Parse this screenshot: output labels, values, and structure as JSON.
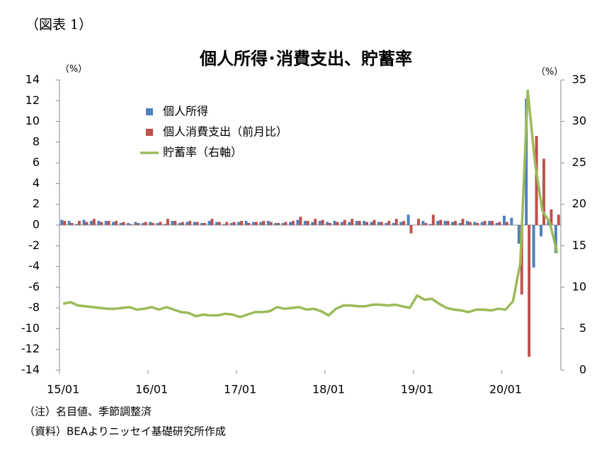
{
  "figure_label": "（図表 1）",
  "chart_data": {
    "type": "bar_line",
    "title": "個人所得･消費支出、貯蓄率",
    "y_unit": "（%）",
    "y2_unit": "（%）",
    "categories": [
      "15/01",
      null,
      null,
      null,
      null,
      null,
      null,
      null,
      null,
      null,
      null,
      null,
      "16/01",
      null,
      null,
      null,
      null,
      null,
      null,
      null,
      null,
      null,
      null,
      null,
      "17/01",
      null,
      null,
      null,
      null,
      null,
      null,
      null,
      null,
      null,
      null,
      null,
      "18/01",
      null,
      null,
      null,
      null,
      null,
      null,
      null,
      null,
      null,
      null,
      null,
      "19/01",
      null,
      null,
      null,
      null,
      null,
      null,
      null,
      null,
      null,
      null,
      null,
      "20/01",
      null,
      null,
      null,
      null,
      null,
      null,
      null
    ],
    "ylim": [
      -14,
      14
    ],
    "yticks": [
      -14,
      -12,
      -10,
      -8,
      -6,
      -4,
      -2,
      0,
      2,
      4,
      6,
      8,
      10,
      12,
      14
    ],
    "y2lim": [
      0,
      35
    ],
    "y2ticks": [
      0,
      5,
      10,
      15,
      20,
      25,
      30,
      35
    ],
    "grid": false,
    "series": [
      {
        "name": "個人所得",
        "type": "bar",
        "color": "#4f81bd",
        "values": [
          0.5,
          0.4,
          0.1,
          0.5,
          0.4,
          0.4,
          0.4,
          0.3,
          0.2,
          0.2,
          0.3,
          0.2,
          0.3,
          0.2,
          0.1,
          0.4,
          0.2,
          0.3,
          0.3,
          0.2,
          0.4,
          0.3,
          0.1,
          0.2,
          0.3,
          0.4,
          0.3,
          0.3,
          0.4,
          0.2,
          0.2,
          0.3,
          0.5,
          0.4,
          0.3,
          0.4,
          0.3,
          0.4,
          0.3,
          0.3,
          0.4,
          0.4,
          0.3,
          0.3,
          0.2,
          0.2,
          0.3,
          1.0,
          0.0,
          0.4,
          0.1,
          0.4,
          0.4,
          0.3,
          0.2,
          0.4,
          0.3,
          0.3,
          0.4,
          0.2,
          0.9,
          0.7,
          -1.8,
          12.2,
          -4.1,
          -1.1,
          0.5,
          -2.7
        ]
      },
      {
        "name": "個人消費支出（前月比）",
        "type": "bar",
        "color": "#c0504d",
        "values": [
          0.4,
          0.2,
          0.4,
          0.3,
          0.6,
          0.3,
          0.4,
          0.4,
          0.3,
          0.1,
          0.2,
          0.3,
          0.2,
          0.3,
          0.6,
          0.4,
          0.3,
          0.4,
          0.3,
          0.2,
          0.6,
          0.3,
          0.3,
          0.3,
          0.4,
          0.2,
          0.3,
          0.4,
          0.3,
          0.2,
          0.3,
          0.4,
          0.8,
          0.4,
          0.6,
          0.5,
          0.2,
          0.3,
          0.5,
          0.6,
          0.4,
          0.3,
          0.5,
          0.3,
          0.4,
          0.6,
          0.4,
          -0.8,
          0.6,
          0.2,
          1.0,
          0.5,
          0.4,
          0.4,
          0.6,
          0.3,
          0.2,
          0.4,
          0.4,
          0.3,
          0.3,
          0.0,
          -6.7,
          -12.7,
          8.6,
          6.4,
          1.5,
          1.0
        ]
      },
      {
        "name": "貯蓄率（右軸）",
        "type": "line",
        "axis": "y2",
        "color": "#9bbb59",
        "values": [
          8.0,
          8.2,
          7.8,
          7.7,
          7.6,
          7.5,
          7.4,
          7.4,
          7.5,
          7.6,
          7.3,
          7.4,
          7.6,
          7.3,
          7.6,
          7.3,
          7.0,
          6.9,
          6.5,
          6.7,
          6.6,
          6.6,
          6.8,
          6.7,
          6.4,
          6.7,
          7.0,
          7.0,
          7.1,
          7.6,
          7.4,
          7.5,
          7.6,
          7.3,
          7.4,
          7.1,
          6.6,
          7.4,
          7.8,
          7.8,
          7.7,
          7.7,
          7.9,
          7.9,
          7.8,
          7.9,
          7.7,
          7.5,
          9.0,
          8.5,
          8.6,
          8.0,
          7.5,
          7.3,
          7.2,
          7.0,
          7.3,
          7.3,
          7.2,
          7.4,
          7.3,
          8.3,
          12.9,
          33.7,
          24.9,
          19.2,
          17.8,
          14.1
        ]
      }
    ],
    "legend": "upper left"
  },
  "notes": [
    "（注）名目値、季節調整済",
    "（資料）BEAよりニッセイ基礎研究所作成"
  ]
}
